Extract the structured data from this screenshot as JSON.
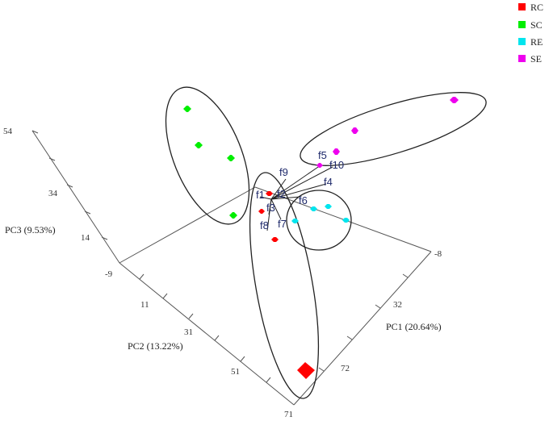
{
  "chart_data": {
    "type": "scatter",
    "title": "",
    "axes": {
      "pc1": {
        "label": "PC1 (20.64%)",
        "ticks": [
          "-8",
          "32",
          "72"
        ]
      },
      "pc2": {
        "label": "PC2 (13.22%)",
        "ticks": [
          "-9",
          "11",
          "31",
          "51",
          "71"
        ]
      },
      "pc3": {
        "label": "PC3 (9.53%)",
        "ticks": [
          "54",
          "34",
          "14"
        ]
      }
    },
    "legend": {
      "placement": "top-right",
      "entries": [
        {
          "name": "RC",
          "color": "#ff0000"
        },
        {
          "name": "SC",
          "color": "#00ee00"
        },
        {
          "name": "RE",
          "color": "#00e5ee"
        },
        {
          "name": "SE",
          "color": "#ee00ee"
        }
      ]
    },
    "series": [
      {
        "name": "RC",
        "color": "#ff0000"
      },
      {
        "name": "SC",
        "color": "#00ee00"
      },
      {
        "name": "RE",
        "color": "#00e5ee"
      },
      {
        "name": "SE",
        "color": "#ee00ee"
      }
    ],
    "loading_vectors": [
      "f1",
      "f2",
      "f3",
      "f4",
      "f5",
      "f6",
      "f7",
      "f8",
      "f9",
      "f10"
    ],
    "groups_circled": [
      "RC",
      "SC",
      "RE",
      "SE"
    ]
  }
}
